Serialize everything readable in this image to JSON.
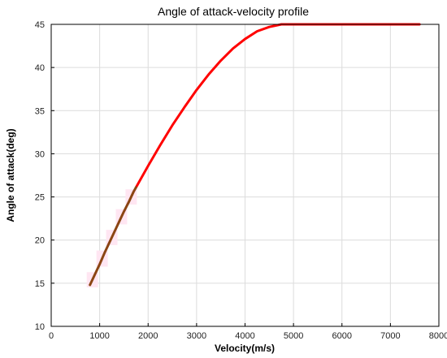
{
  "chart_data": {
    "type": "line",
    "title": "Angle of attack-velocity profile",
    "xlabel": "Velocity(m/s)",
    "ylabel": "Angle of attack(deg)",
    "xlim": [
      0,
      8000
    ],
    "ylim": [
      10,
      45
    ],
    "xticks": [
      0,
      1000,
      2000,
      3000,
      4000,
      5000,
      6000,
      7000,
      8000
    ],
    "yticks": [
      10,
      15,
      20,
      25,
      30,
      35,
      40,
      45
    ],
    "grid": true,
    "legend": "none",
    "series": [
      {
        "color": "#8b4513",
        "x": [
          800,
          900,
          1000,
          1100,
          1200,
          1300,
          1400,
          1500,
          1600,
          1700,
          1750
        ],
        "y": [
          14.8,
          16.0,
          17.2,
          18.5,
          19.7,
          20.9,
          22.1,
          23.3,
          24.4,
          25.6,
          26.1
        ]
      },
      {
        "color": "#ff0000",
        "x": [
          1750,
          2000,
          2250,
          2500,
          2750,
          3000,
          3250,
          3500,
          3750,
          4000,
          4250,
          4500,
          4750,
          4900,
          5000,
          5500,
          6000,
          6500,
          7000,
          7600
        ],
        "y": [
          26.1,
          28.6,
          31.0,
          33.3,
          35.4,
          37.4,
          39.2,
          40.8,
          42.2,
          43.3,
          44.2,
          44.7,
          45.0,
          45.0,
          45.0,
          45.0,
          45.0,
          45.0,
          45.0,
          45.0
        ]
      }
    ]
  }
}
